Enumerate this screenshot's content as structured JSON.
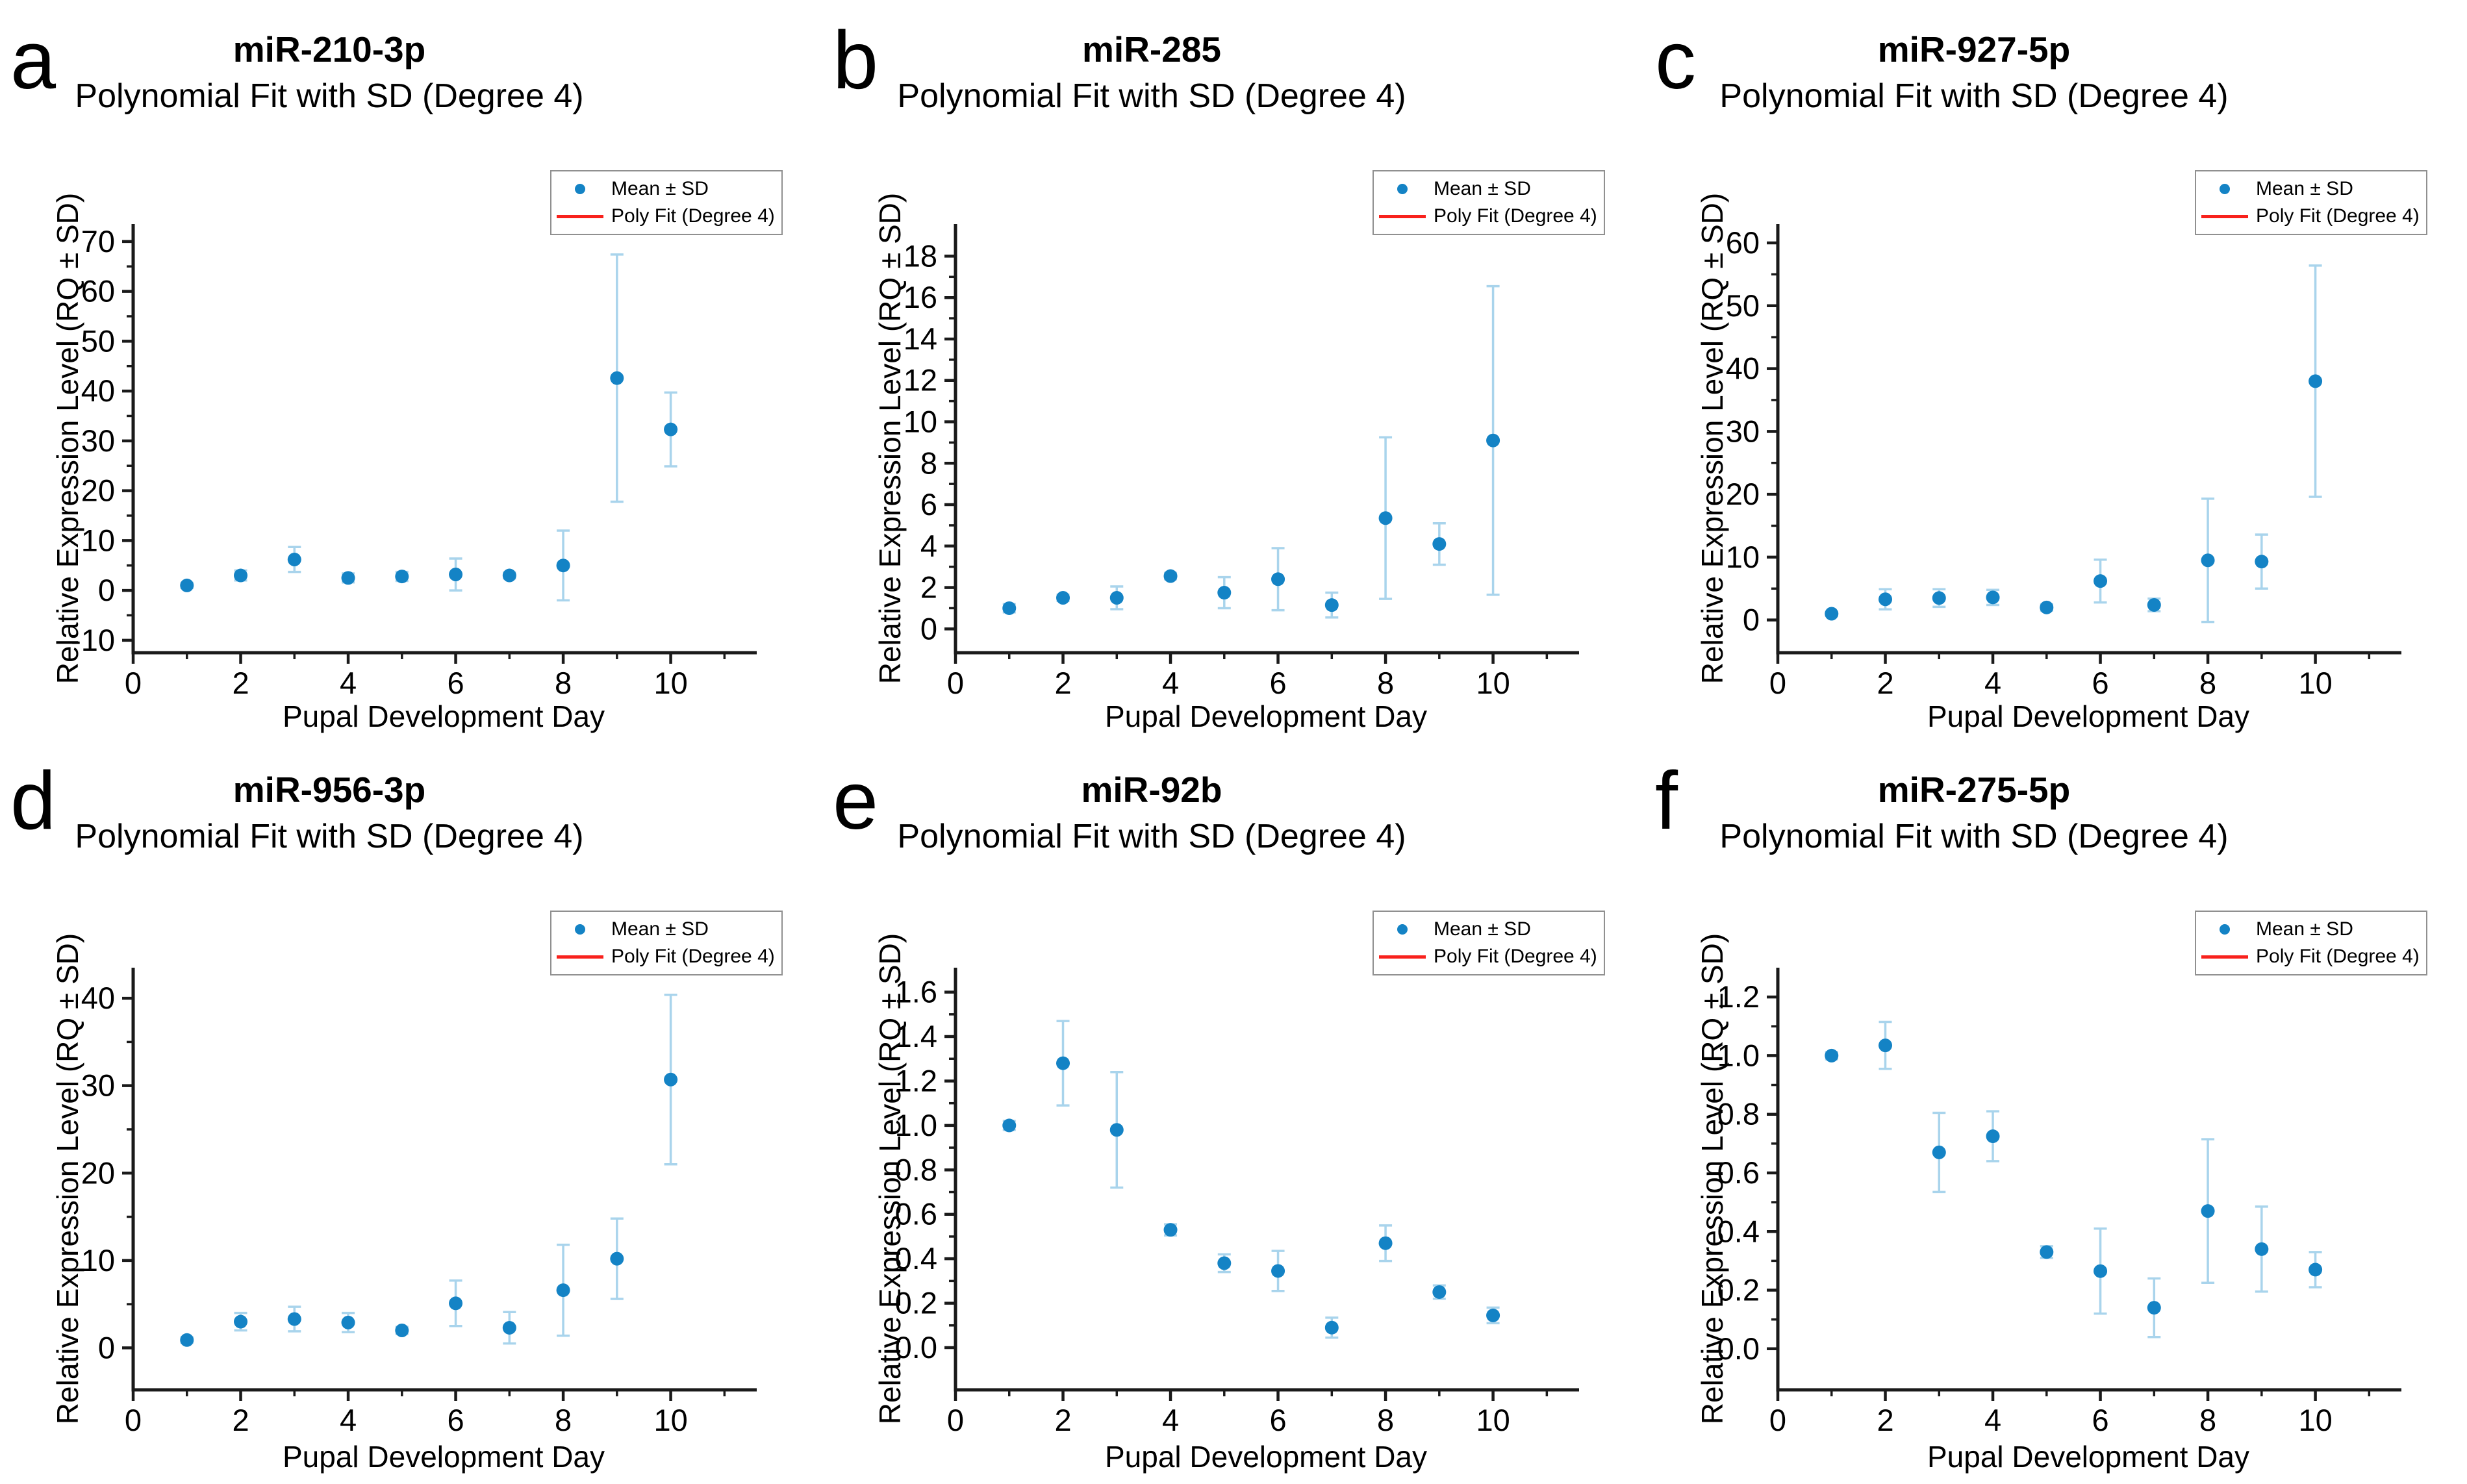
{
  "style": {
    "point_color": "#1483c5",
    "error_bar_color": "#a9d4ec",
    "fit_line_color": "#f8211c",
    "axis_color": "#1a1a1a",
    "legend_border_color": "#909090",
    "background_color": "#ffffff"
  },
  "chart_data": [
    {
      "panel_letter": "a",
      "type": "scatter",
      "title": "miR-210-3p",
      "subtitle": "Polynomial Fit with SD (Degree 4)",
      "xlabel": "Pupal Development Day",
      "ylabel": "Relative Expression Level (RQ ± SD)",
      "legend": [
        "Mean ± SD",
        "Poly Fit (Degree 4)"
      ],
      "x": [
        1,
        2,
        3,
        4,
        5,
        6,
        7,
        8,
        9,
        10
      ],
      "series": [
        {
          "name": "Mean ± SD",
          "type": "scatter_errorbar",
          "values": [
            1.0,
            3.0,
            6.2,
            2.5,
            2.8,
            3.2,
            3.0,
            5.0,
            42.6,
            32.3
          ],
          "sd": [
            0.5,
            1.0,
            2.5,
            0.9,
            0.9,
            3.2,
            0.6,
            7.0,
            24.8,
            7.4
          ]
        },
        {
          "name": "Poly Fit (Degree 4)",
          "type": "line",
          "fit": "degree-4 polynomial least-squares fit of the mean values"
        }
      ],
      "xlim": [
        0,
        11.6
      ],
      "ylim": [
        -12.5,
        73.5
      ],
      "x_ticks": [
        0,
        2,
        4,
        6,
        8,
        10
      ],
      "x_tick_labels": [
        "0",
        "2",
        "4",
        "6",
        "8",
        "10"
      ],
      "x_minor_ticks": [
        1,
        3,
        5,
        7,
        9,
        11
      ],
      "y_ticks": [
        -10,
        0,
        10,
        20,
        30,
        40,
        50,
        60,
        70
      ],
      "y_tick_labels": [
        "-10",
        "0",
        "10",
        "20",
        "30",
        "40",
        "50",
        "60",
        "70"
      ],
      "grid": false,
      "legend_position": "top-right"
    },
    {
      "panel_letter": "b",
      "type": "scatter",
      "title": "miR-285",
      "subtitle": "Polynomial Fit with SD (Degree 4)",
      "xlabel": "Pupal Development Day",
      "ylabel": "Relative Expression Level (RQ ± SD)",
      "legend": [
        "Mean ± SD",
        "Poly Fit (Degree 4)"
      ],
      "x": [
        1,
        2,
        3,
        4,
        5,
        6,
        7,
        8,
        9,
        10
      ],
      "series": [
        {
          "name": "Mean ± SD",
          "type": "scatter_errorbar",
          "values": [
            1.0,
            1.5,
            1.5,
            2.55,
            1.75,
            2.4,
            1.15,
            5.35,
            4.1,
            9.1
          ],
          "sd": [
            0.2,
            0.15,
            0.55,
            0.15,
            0.75,
            1.5,
            0.6,
            3.9,
            1.0,
            7.45
          ]
        },
        {
          "name": "Poly Fit (Degree 4)",
          "type": "line",
          "fit": "degree-4 polynomial least-squares fit of the mean values"
        }
      ],
      "xlim": [
        0,
        11.6
      ],
      "ylim": [
        -1.15,
        19.55
      ],
      "x_ticks": [
        0,
        2,
        4,
        6,
        8,
        10
      ],
      "x_tick_labels": [
        "0",
        "2",
        "4",
        "6",
        "8",
        "10"
      ],
      "x_minor_ticks": [
        1,
        3,
        5,
        7,
        9,
        11
      ],
      "y_ticks": [
        0,
        2,
        4,
        6,
        8,
        10,
        12,
        14,
        16,
        18
      ],
      "y_tick_labels": [
        "0",
        "2",
        "4",
        "6",
        "8",
        "10",
        "12",
        "14",
        "16",
        "18"
      ],
      "grid": false,
      "legend_position": "top-right"
    },
    {
      "panel_letter": "c",
      "type": "scatter",
      "title": "miR-927-5p",
      "subtitle": "Polynomial Fit with SD (Degree 4)",
      "xlabel": "Pupal Development Day",
      "ylabel": "Relative Expression Level (RQ ± SD)",
      "legend": [
        "Mean ± SD",
        "Poly Fit (Degree 4)"
      ],
      "x": [
        1,
        2,
        3,
        4,
        5,
        6,
        7,
        8,
        9,
        10
      ],
      "series": [
        {
          "name": "Mean ± SD",
          "type": "scatter_errorbar",
          "values": [
            1.0,
            3.3,
            3.5,
            3.6,
            2.0,
            6.2,
            2.4,
            9.5,
            9.3,
            38.0
          ],
          "sd": [
            0.3,
            1.6,
            1.4,
            1.2,
            0.5,
            3.4,
            1.0,
            9.8,
            4.3,
            18.4
          ]
        },
        {
          "name": "Poly Fit (Degree 4)",
          "type": "line",
          "fit": "degree-4 polynomial least-squares fit of the mean values"
        }
      ],
      "xlim": [
        0,
        11.6
      ],
      "ylim": [
        -5.2,
        63.0
      ],
      "x_ticks": [
        0,
        2,
        4,
        6,
        8,
        10
      ],
      "x_tick_labels": [
        "0",
        "2",
        "4",
        "6",
        "8",
        "10"
      ],
      "x_minor_ticks": [
        1,
        3,
        5,
        7,
        9,
        11
      ],
      "y_ticks": [
        0,
        10,
        20,
        30,
        40,
        50,
        60
      ],
      "y_tick_labels": [
        "0",
        "10",
        "20",
        "30",
        "40",
        "50",
        "60"
      ],
      "grid": false,
      "legend_position": "top-right"
    },
    {
      "panel_letter": "d",
      "type": "scatter",
      "title": "miR-956-3p",
      "subtitle": "Polynomial Fit with SD (Degree 4)",
      "xlabel": "Pupal Development Day",
      "ylabel": "Relative Expression Level (RQ ± SD)",
      "legend": [
        "Mean ± SD",
        "Poly Fit (Degree 4)"
      ],
      "x": [
        1,
        2,
        3,
        4,
        5,
        6,
        7,
        8,
        9,
        10
      ],
      "series": [
        {
          "name": "Mean ± SD",
          "type": "scatter_errorbar",
          "values": [
            0.9,
            3.0,
            3.3,
            2.9,
            2.0,
            5.1,
            2.3,
            6.6,
            10.2,
            30.7
          ],
          "sd": [
            0.3,
            1.0,
            1.4,
            1.1,
            0.4,
            2.6,
            1.8,
            5.2,
            4.6,
            9.7
          ]
        },
        {
          "name": "Poly Fit (Degree 4)",
          "type": "line",
          "fit": "degree-4 polynomial least-squares fit of the mean values"
        }
      ],
      "xlim": [
        0,
        11.6
      ],
      "ylim": [
        -4.8,
        43.5
      ],
      "x_ticks": [
        0,
        2,
        4,
        6,
        8,
        10
      ],
      "x_tick_labels": [
        "0",
        "2",
        "4",
        "6",
        "8",
        "10"
      ],
      "x_minor_ticks": [
        1,
        3,
        5,
        7,
        9,
        11
      ],
      "y_ticks": [
        0,
        10,
        20,
        30,
        40
      ],
      "y_tick_labels": [
        "0",
        "10",
        "20",
        "30",
        "40"
      ],
      "grid": false,
      "legend_position": "top-right"
    },
    {
      "panel_letter": "e",
      "type": "scatter",
      "title": "miR-92b",
      "subtitle": "Polynomial Fit with SD (Degree 4)",
      "xlabel": "Pupal Development Day",
      "ylabel": "Relative Expression Level (RQ ± SD)",
      "legend": [
        "Mean ± SD",
        "Poly Fit (Degree 4)"
      ],
      "x": [
        1,
        2,
        3,
        4,
        5,
        6,
        7,
        8,
        9,
        10
      ],
      "series": [
        {
          "name": "Mean ± SD",
          "type": "scatter_errorbar",
          "values": [
            1.0,
            1.28,
            0.98,
            0.53,
            0.38,
            0.345,
            0.09,
            0.47,
            0.25,
            0.145
          ],
          "sd": [
            0.02,
            0.19,
            0.26,
            0.025,
            0.04,
            0.09,
            0.045,
            0.08,
            0.03,
            0.035
          ]
        },
        {
          "name": "Poly Fit (Degree 4)",
          "type": "line",
          "fit": "degree-4 polynomial least-squares fit of the mean values"
        }
      ],
      "xlim": [
        0,
        11.6
      ],
      "ylim": [
        -0.19,
        1.71
      ],
      "x_ticks": [
        0,
        2,
        4,
        6,
        8,
        10
      ],
      "x_tick_labels": [
        "0",
        "2",
        "4",
        "6",
        "8",
        "10"
      ],
      "x_minor_ticks": [
        1,
        3,
        5,
        7,
        9,
        11
      ],
      "y_ticks": [
        0.0,
        0.2,
        0.4,
        0.6,
        0.8,
        1.0,
        1.2,
        1.4,
        1.6
      ],
      "y_tick_labels": [
        "0.0",
        "0.2",
        "0.4",
        "0.6",
        "0.8",
        "1.0",
        "1.2",
        "1.4",
        "1.6"
      ],
      "grid": false,
      "legend_position": "top-right"
    },
    {
      "panel_letter": "f",
      "type": "scatter",
      "title": "miR-275-5p",
      "subtitle": "Polynomial Fit with SD (Degree 4)",
      "xlabel": "Pupal Development Day",
      "ylabel": "Relative Expression Level (RQ ± SD)",
      "legend": [
        "Mean ± SD",
        "Poly Fit (Degree 4)"
      ],
      "x": [
        1,
        2,
        3,
        4,
        5,
        6,
        7,
        8,
        9,
        10
      ],
      "series": [
        {
          "name": "Mean ± SD",
          "type": "scatter_errorbar",
          "values": [
            1.0,
            1.035,
            0.67,
            0.725,
            0.33,
            0.265,
            0.14,
            0.47,
            0.34,
            0.27
          ],
          "sd": [
            0.012,
            0.08,
            0.135,
            0.085,
            0.02,
            0.145,
            0.1,
            0.245,
            0.145,
            0.06
          ]
        },
        {
          "name": "Poly Fit (Degree 4)",
          "type": "line",
          "fit": "degree-4 polynomial least-squares fit of the mean values"
        }
      ],
      "xlim": [
        0,
        11.6
      ],
      "ylim": [
        -0.14,
        1.3
      ],
      "x_ticks": [
        0,
        2,
        4,
        6,
        8,
        10
      ],
      "x_tick_labels": [
        "0",
        "2",
        "4",
        "6",
        "8",
        "10"
      ],
      "x_minor_ticks": [
        1,
        3,
        5,
        7,
        9,
        11
      ],
      "y_ticks": [
        0.0,
        0.2,
        0.4,
        0.6,
        0.8,
        1.0,
        1.2
      ],
      "y_tick_labels": [
        "0.0",
        "0.2",
        "0.4",
        "0.6",
        "0.8",
        "1.0",
        "1.2"
      ],
      "grid": false,
      "legend_position": "top-right"
    }
  ]
}
